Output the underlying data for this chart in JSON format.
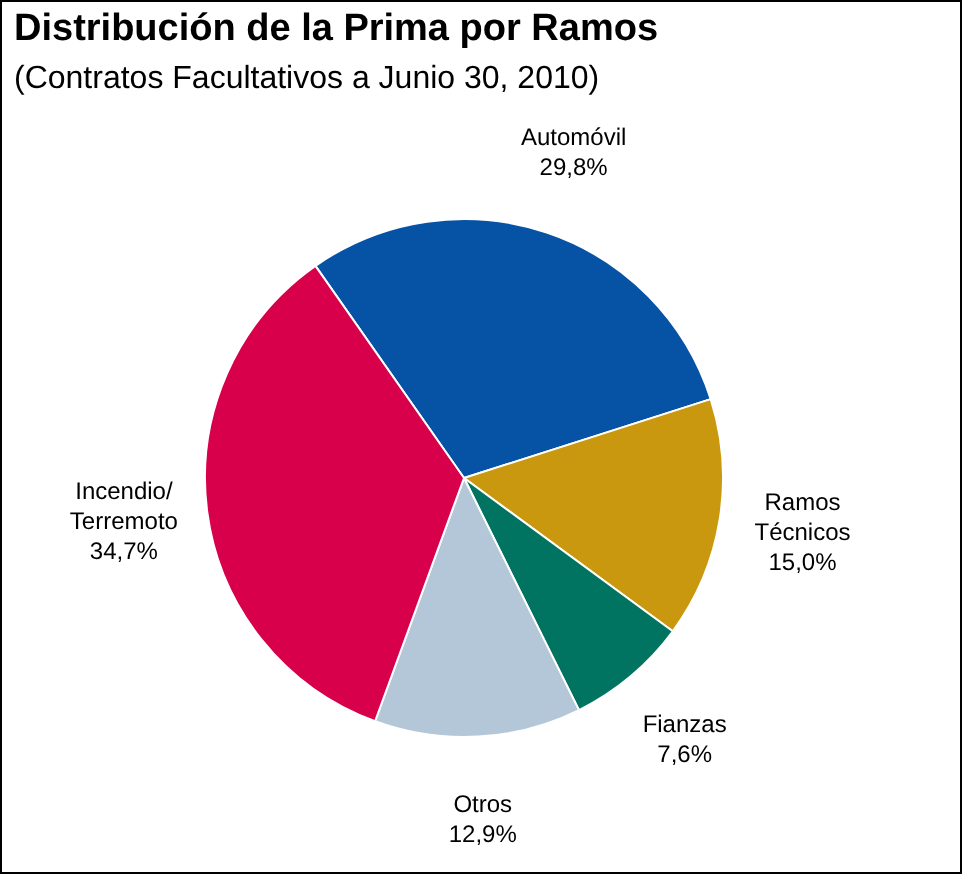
{
  "chart_data": {
    "type": "pie",
    "title": "Distribución de la Prima por Ramos",
    "subtitle": "(Contratos Facultativos a Junio 30, 2010)",
    "categories": [
      "Automóvil",
      "Ramos Técnicos",
      "Fianzas",
      "Otros",
      "Incendio/ Terremoto"
    ],
    "values": [
      29.8,
      15.0,
      7.6,
      12.9,
      34.7
    ],
    "value_labels": [
      "29,8%",
      "15,0%",
      "7,6%",
      "12,9%",
      "34,7%"
    ],
    "colors": [
      "#0652a4",
      "#c9980f",
      "#007461",
      "#b4c7d8",
      "#d9004b"
    ],
    "legend": false
  }
}
